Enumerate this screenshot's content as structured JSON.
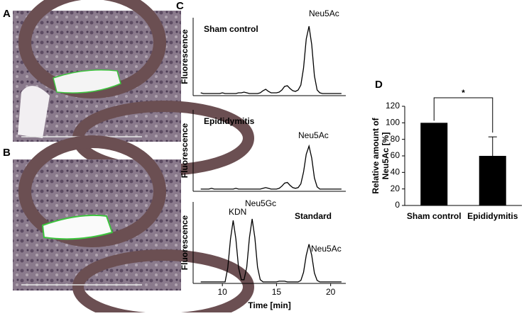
{
  "panel_labels": [
    "A",
    "B",
    "C",
    "D"
  ],
  "chart_data": [
    {
      "type": "line",
      "panel_title": "Sham control",
      "ylabel": "Fluorescence",
      "annotations": [
        "Neu5Ac"
      ],
      "xlim": [
        7.3,
        21.4
      ],
      "ylim": [
        0,
        110
      ],
      "x": [
        8,
        8.25,
        8.5,
        8.75,
        9,
        9.25,
        9.5,
        9.75,
        10,
        10.25,
        10.5,
        10.75,
        11,
        11.25,
        11.5,
        11.75,
        12,
        12.25,
        12.5,
        12.75,
        13,
        13.25,
        13.5,
        13.75,
        14,
        14.25,
        14.5,
        14.75,
        15,
        15.25,
        15.5,
        15.75,
        16,
        16.25,
        16.5,
        16.75,
        17,
        17.25,
        17.5,
        17.75,
        18,
        18.25,
        18.5,
        18.75,
        19,
        19.25,
        19.5,
        19.75,
        20,
        20.25,
        20.5,
        20.75,
        21
      ],
      "series": [
        {
          "color": "#000000",
          "values": [
            4,
            3,
            3,
            3,
            3,
            3,
            3,
            3,
            4,
            3,
            3,
            3,
            3,
            3,
            4,
            4,
            5,
            4,
            3,
            3,
            3,
            3,
            4,
            7,
            9,
            6,
            4,
            4,
            4,
            5,
            8,
            13,
            14,
            10,
            7,
            6,
            8,
            15,
            39,
            80,
            98,
            72,
            28,
            8,
            4,
            3,
            3,
            3,
            3,
            3,
            3,
            3,
            3
          ]
        }
      ]
    },
    {
      "type": "line",
      "panel_title": "Epididymitis",
      "ylabel": "Fluorescence",
      "annotations": [
        "Neu5Ac"
      ],
      "xlim": [
        7.3,
        21.4
      ],
      "ylim": [
        0,
        110
      ],
      "x": [
        8,
        8.25,
        8.5,
        8.75,
        9,
        9.25,
        9.5,
        9.75,
        10,
        10.25,
        10.5,
        10.75,
        11,
        11.25,
        11.5,
        11.75,
        12,
        12.25,
        12.5,
        12.75,
        13,
        13.25,
        13.5,
        13.75,
        14,
        14.25,
        14.5,
        14.75,
        15,
        15.25,
        15.5,
        15.75,
        16,
        16.25,
        16.5,
        16.75,
        17,
        17.25,
        17.5,
        17.75,
        18,
        18.25,
        18.5,
        18.75,
        19,
        19.25,
        19.5,
        19.75,
        20,
        20.25,
        20.5,
        20.75,
        21
      ],
      "series": [
        {
          "color": "#000000",
          "values": [
            3,
            3,
            3,
            3,
            4,
            3,
            3,
            3,
            3,
            3,
            3,
            3,
            3,
            4,
            3,
            3,
            3,
            3,
            3,
            3,
            3,
            3,
            3,
            4,
            5,
            4,
            3,
            3,
            3,
            4,
            7,
            11,
            12,
            8,
            5,
            4,
            5,
            10,
            26,
            50,
            61,
            45,
            18,
            6,
            3,
            3,
            3,
            3,
            3,
            3,
            3,
            3,
            3
          ]
        }
      ]
    },
    {
      "type": "line",
      "panel_title": "Standard",
      "ylabel": "Fluorescence",
      "annotations": [
        "KDN",
        "Neu5Gc",
        "Neu5Ac"
      ],
      "xlabel": "Time [min]",
      "xlim": [
        7.3,
        21.4
      ],
      "ylim": [
        0,
        110
      ],
      "xticks": [
        10,
        15,
        20
      ],
      "x": [
        8,
        8.25,
        8.5,
        8.75,
        9,
        9.25,
        9.5,
        9.75,
        10,
        10.25,
        10.5,
        10.75,
        11,
        11.25,
        11.5,
        11.75,
        12,
        12.25,
        12.5,
        12.75,
        13,
        13.25,
        13.5,
        13.75,
        14,
        14.25,
        14.5,
        14.75,
        15,
        15.25,
        15.5,
        15.75,
        16,
        16.25,
        16.5,
        16.75,
        17,
        17.25,
        17.5,
        17.75,
        18,
        18.25,
        18.5,
        18.75,
        19,
        19.25,
        19.5,
        19.75,
        20,
        20.25,
        20.5,
        20.75,
        21
      ],
      "series": [
        {
          "color": "#000000",
          "values": [
            2,
            2,
            2,
            2,
            2,
            2,
            2,
            2,
            2,
            2,
            21,
            60,
            85,
            60,
            21,
            5,
            5,
            22,
            62,
            87,
            62,
            22,
            5,
            2,
            2,
            2,
            2,
            2,
            2,
            3,
            3,
            3,
            2,
            2,
            2,
            2,
            2,
            4,
            15,
            38,
            53,
            38,
            14,
            4,
            2,
            2,
            2,
            2,
            2,
            2,
            2,
            2,
            2
          ]
        }
      ]
    },
    {
      "type": "bar",
      "ylabel": [
        "Relative amount of",
        "Neu5Ac [%]"
      ],
      "significance": "*",
      "categories": [
        "Sham control",
        "Epididymitis"
      ],
      "values": [
        100,
        60
      ],
      "errors": [
        0,
        23
      ],
      "color": "#000000",
      "ylim": [
        0,
        120
      ],
      "yticks": [
        0,
        20,
        40,
        60,
        80,
        100,
        120
      ]
    }
  ]
}
